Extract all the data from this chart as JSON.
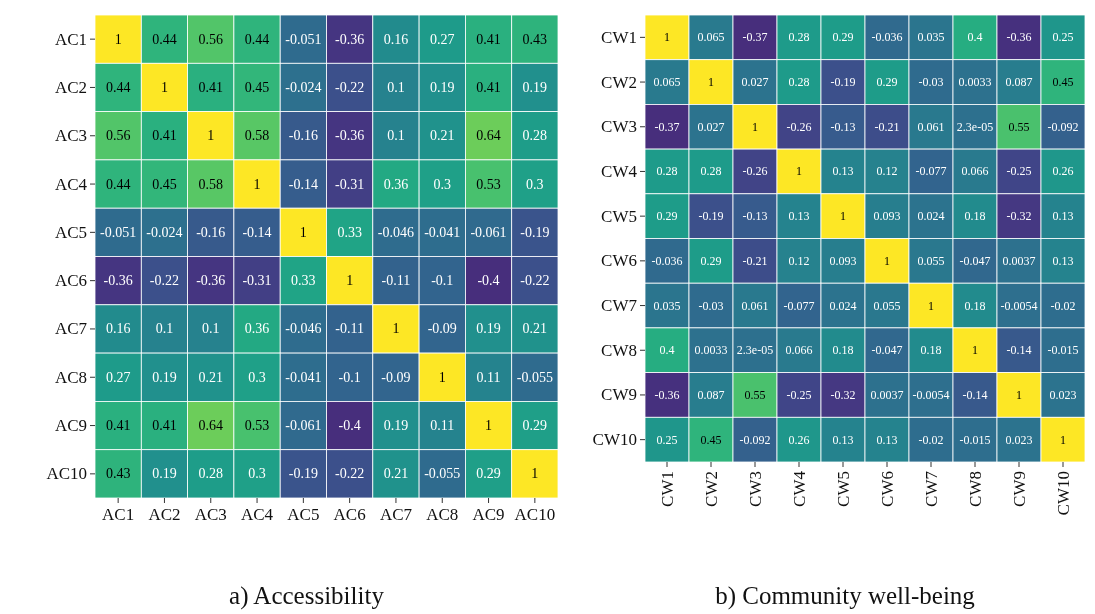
{
  "chart_data": [
    {
      "type": "heatmap",
      "title": "a) Accessibility",
      "data_labels": true,
      "categories": [
        "AC1",
        "AC2",
        "AC3",
        "AC4",
        "AC5",
        "AC6",
        "AC7",
        "AC8",
        "AC9",
        "AC10"
      ],
      "y_categories": [
        "AC1",
        "AC2",
        "AC3",
        "AC4",
        "AC5",
        "AC6",
        "AC7",
        "AC8",
        "AC9",
        "AC10"
      ],
      "cells": [
        [
          1,
          0.44,
          0.56,
          0.44,
          -0.051,
          -0.36,
          0.16,
          0.27,
          0.41,
          0.43
        ],
        [
          0.44,
          1,
          0.41,
          0.45,
          -0.024,
          -0.22,
          0.1,
          0.19,
          0.41,
          0.19
        ],
        [
          0.56,
          0.41,
          1,
          0.58,
          -0.16,
          -0.36,
          0.1,
          0.21,
          0.64,
          0.28
        ],
        [
          0.44,
          0.45,
          0.58,
          1,
          -0.14,
          -0.31,
          0.36,
          0.3,
          0.53,
          0.3
        ],
        [
          -0.051,
          -0.024,
          -0.16,
          -0.14,
          1,
          0.33,
          -0.046,
          -0.041,
          -0.061,
          -0.19
        ],
        [
          -0.36,
          -0.22,
          -0.36,
          -0.31,
          0.33,
          1,
          -0.11,
          -0.1,
          -0.4,
          -0.22
        ],
        [
          0.16,
          0.1,
          0.1,
          0.36,
          -0.046,
          -0.11,
          1,
          -0.09,
          0.19,
          0.21
        ],
        [
          0.27,
          0.19,
          0.21,
          0.3,
          -0.041,
          -0.1,
          -0.09,
          1,
          0.11,
          -0.055
        ],
        [
          0.41,
          0.41,
          0.64,
          0.53,
          -0.061,
          -0.4,
          0.19,
          0.11,
          1,
          0.29
        ],
        [
          0.43,
          0.19,
          0.28,
          0.3,
          -0.19,
          -0.22,
          0.21,
          -0.055,
          0.29,
          1
        ]
      ]
    },
    {
      "type": "heatmap",
      "title": "b) Community well-being",
      "categories": [
        "CW1",
        "CW2",
        "CW3",
        "CW4",
        "CW5",
        "CW6",
        "CW7",
        "CW8",
        "CW9",
        "CW10"
      ],
      "y_categories": [
        "CW1",
        "CW2",
        "CW3",
        "CW4",
        "CW5",
        "CW6",
        "CW7",
        "CW8",
        "CW9",
        "CW10"
      ],
      "cells": [
        [
          1,
          0.065,
          -0.37,
          0.28,
          0.29,
          -0.036,
          0.035,
          0.4,
          -0.36,
          0.25
        ],
        [
          0.065,
          1,
          0.027,
          0.28,
          -0.19,
          0.29,
          -0.03,
          0.0033,
          0.087,
          0.45
        ],
        [
          -0.37,
          0.027,
          1,
          -0.26,
          -0.13,
          -0.21,
          0.061,
          2.3e-05,
          0.55,
          -0.092
        ],
        [
          0.28,
          0.28,
          -0.26,
          1,
          0.13,
          0.12,
          -0.077,
          0.066,
          -0.25,
          0.26
        ],
        [
          0.29,
          -0.19,
          -0.13,
          0.13,
          1,
          0.093,
          0.024,
          0.18,
          -0.32,
          0.13
        ],
        [
          -0.036,
          0.29,
          -0.21,
          0.12,
          0.093,
          1,
          0.055,
          -0.047,
          0.0037,
          0.13
        ],
        [
          0.035,
          -0.03,
          0.061,
          -0.077,
          0.024,
          0.055,
          1,
          0.18,
          -0.0054,
          -0.02
        ],
        [
          0.4,
          0.0033,
          2.3e-05,
          0.066,
          0.18,
          -0.047,
          0.18,
          1,
          -0.14,
          -0.015
        ],
        [
          -0.36,
          0.087,
          0.55,
          -0.25,
          -0.32,
          0.0037,
          -0.0054,
          -0.14,
          1,
          0.023
        ],
        [
          0.25,
          0.45,
          -0.092,
          0.26,
          0.13,
          0.13,
          -0.02,
          -0.015,
          0.023,
          1
        ]
      ],
      "cell_labels": [
        [
          "1",
          "0.065",
          "-0.37",
          "0.28",
          "0.29",
          "-0.036",
          "0.035",
          "0.4",
          "-0.36",
          "0.25"
        ],
        [
          "0.065",
          "1",
          "0.027",
          "0.28",
          "-0.19",
          "0.29",
          "-0.03",
          "0.0033",
          "0.087",
          "0.45"
        ],
        [
          "-0.37",
          "0.027",
          "1",
          "-0.26",
          "-0.13",
          "-0.21",
          "0.061",
          "2.3e-05",
          "0.55",
          "-0.092"
        ],
        [
          "0.28",
          "0.28",
          "-0.26",
          "1",
          "0.13",
          "0.12",
          "-0.077",
          "0.066",
          "-0.25",
          "0.26"
        ],
        [
          "0.29",
          "-0.19",
          "-0.13",
          "0.13",
          "1",
          "0.093",
          "0.024",
          "0.18",
          "-0.32",
          "0.13"
        ],
        [
          "-0.036",
          "0.29",
          "-0.21",
          "0.12",
          "0.093",
          "1",
          "0.055",
          "-0.047",
          "0.0037",
          "0.13"
        ],
        [
          "0.035",
          "-0.03",
          "0.061",
          "-0.077",
          "0.024",
          "0.055",
          "1",
          "0.18",
          "-0.0054",
          "-0.02"
        ],
        [
          "0.4",
          "0.0033",
          "2.3e-05",
          "0.066",
          "0.18",
          "-0.047",
          "0.18",
          "1",
          "-0.14",
          "-0.015"
        ],
        [
          "-0.36",
          "0.087",
          "0.55",
          "-0.25",
          "-0.32",
          "0.0037",
          "-0.0054",
          "-0.14",
          "1",
          "0.023"
        ],
        [
          "0.25",
          "0.45",
          "-0.092",
          "0.26",
          "0.13",
          "0.13",
          "-0.02",
          "-0.015",
          "0.023",
          "1"
        ]
      ]
    }
  ]
}
